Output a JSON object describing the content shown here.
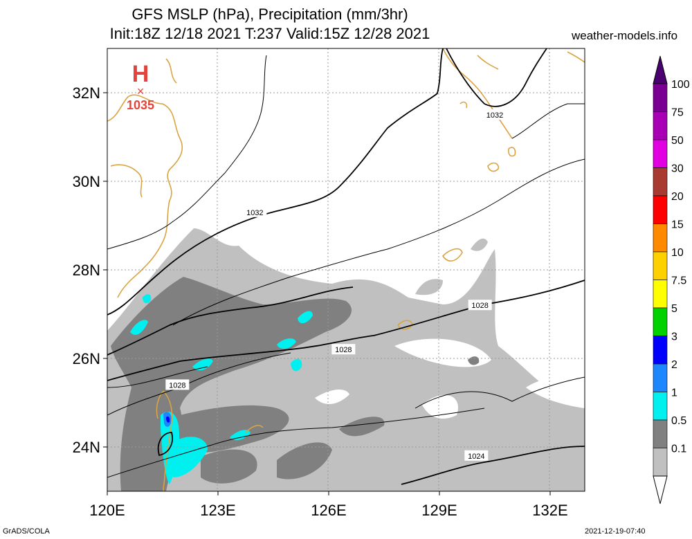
{
  "header": {
    "title_line1": "GFS MSLP (hPa), Precipitation (mm/3hr)",
    "title_line2": "Init:18Z 12/18 2021 T:237 Valid:15Z 12/28 2021",
    "site": "weather-models.info"
  },
  "map": {
    "lon_labels": [
      "120E",
      "123E",
      "126E",
      "129E",
      "132E"
    ],
    "lat_labels": [
      "32N",
      "30N",
      "28N",
      "26N",
      "24N"
    ],
    "isobar_labels": [
      {
        "text": "1032",
        "lon": 124.0,
        "lat": 29.3
      },
      {
        "text": "1032",
        "lon": 130.5,
        "lat": 31.5
      },
      {
        "text": "1028",
        "lon": 121.9,
        "lat": 25.4
      },
      {
        "text": "1028",
        "lon": 126.4,
        "lat": 26.2
      },
      {
        "text": "1028",
        "lon": 130.1,
        "lat": 27.2
      },
      {
        "text": "1024",
        "lon": 130.0,
        "lat": 23.8
      }
    ],
    "high_center": {
      "symbol": "H",
      "value": "1035",
      "lon": 120.9,
      "lat": 32.5
    }
  },
  "legend": {
    "labels": [
      "100",
      "75",
      "50",
      "30",
      "20",
      "15",
      "10",
      "7.5",
      "5",
      "3",
      "2",
      "1",
      "0.5",
      "0.1"
    ],
    "colors": [
      "#7a0092",
      "#a800b4",
      "#e100e1",
      "#a93a31",
      "#ff0000",
      "#ff8a00",
      "#ffd000",
      "#ffff00",
      "#00d200",
      "#0000ff",
      "#1e86ff",
      "#00f0f0",
      "#808080",
      "#c0c0c0"
    ]
  },
  "footer": {
    "left": "GrADS/COLA",
    "right": "2021-12-19-07:40"
  }
}
